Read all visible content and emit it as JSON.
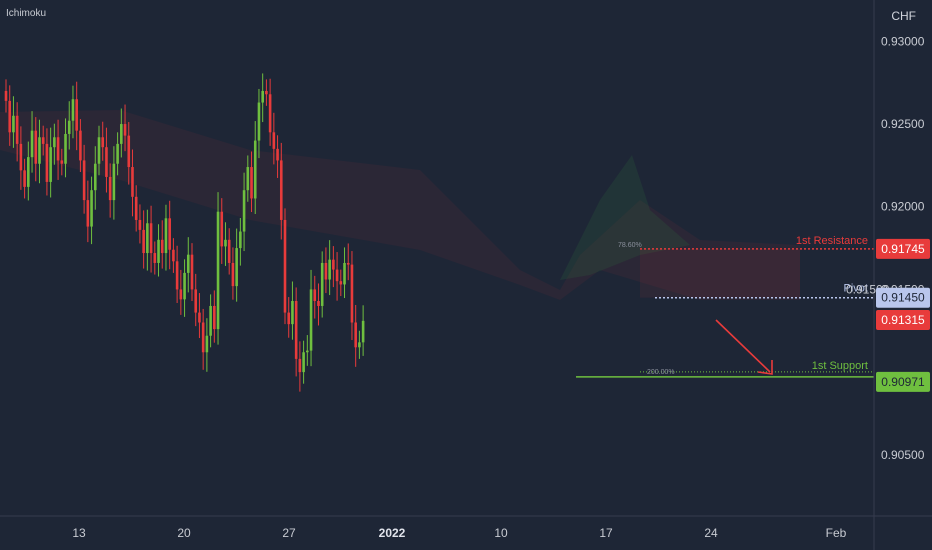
{
  "indicator_label": "Ichimoku",
  "currency": "CHF",
  "colors": {
    "background": "#1e2636",
    "up": "#6fbf3f",
    "down": "#e83b3b",
    "resistance": "#e83b3b",
    "pivot": "#b9c6ec",
    "support": "#6fbf3f",
    "current": "#e83b3b"
  },
  "chart_data": {
    "type": "candlestick",
    "x_ticks": [
      "13",
      "20",
      "27",
      "2022",
      "10",
      "17",
      "24",
      "Feb"
    ],
    "y_ticks": [
      "0.93000",
      "0.92500",
      "0.92000",
      "0.91500",
      "0.90500"
    ],
    "ylim": [
      0.9013,
      0.9325
    ],
    "closes": [
      0.9264,
      0.9245,
      0.9255,
      0.9238,
      0.9222,
      0.9212,
      0.923,
      0.9246,
      0.9226,
      0.9242,
      0.9238,
      0.9215,
      0.9236,
      0.9242,
      0.9228,
      0.9226,
      0.9244,
      0.9252,
      0.9265,
      0.9246,
      0.9228,
      0.9204,
      0.9188,
      0.921,
      0.9226,
      0.9242,
      0.9236,
      0.9218,
      0.9204,
      0.9226,
      0.9238,
      0.925,
      0.9243,
      0.9224,
      0.9206,
      0.9192,
      0.9186,
      0.9172,
      0.919,
      0.9172,
      0.9166,
      0.918,
      0.9172,
      0.9193,
      0.9174,
      0.9167,
      0.915,
      0.9144,
      0.916,
      0.9171,
      0.915,
      0.9136,
      0.913,
      0.9112,
      0.9122,
      0.914,
      0.9126,
      0.9197,
      0.9176,
      0.918,
      0.9166,
      0.9152,
      0.9175,
      0.9185,
      0.921,
      0.9224,
      0.9205,
      0.924,
      0.9263,
      0.927,
      0.9268,
      0.9245,
      0.9235,
      0.9228,
      0.9192,
      0.9136,
      0.9129,
      0.9143,
      0.9108,
      0.91,
      0.9112,
      0.9113,
      0.915,
      0.9143,
      0.914,
      0.9166,
      0.9156,
      0.9168,
      0.9162,
      0.9155,
      0.9153,
      0.9166,
      0.9165,
      0.913,
      0.9115,
      0.9118,
      0.9131
    ],
    "levels": [
      {
        "name": "1st Resistance",
        "value": 0.91745,
        "value_label": "0.91745",
        "color": "#e83b3b"
      },
      {
        "name": "Pivot",
        "value": 0.9145,
        "value_label": "0.91450",
        "color": "#b9c6ec"
      },
      {
        "name": "1st Support",
        "value": 0.90971,
        "value_label": "0.90971",
        "color": "#6fbf3f"
      }
    ],
    "current_price": {
      "value": 0.91315,
      "value_label": "0.91315"
    },
    "fib_labels": [
      "78.60%",
      "200.00%"
    ],
    "pivot_edge_label": "0.91500",
    "grid": false
  }
}
